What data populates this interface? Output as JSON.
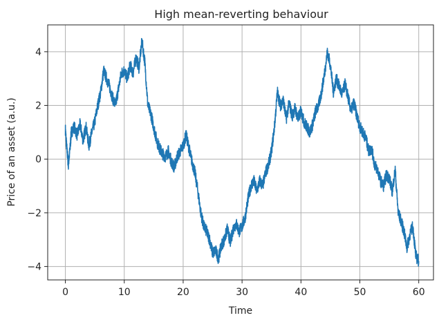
{
  "chart_data": {
    "type": "line",
    "title": "High mean-reverting behaviour",
    "xlabel": "Time",
    "ylabel": "Price of an asset (a.u.)",
    "xlim": [
      -3,
      62.5
    ],
    "ylim": [
      -4.5,
      5.0
    ],
    "xticks": [
      0,
      10,
      20,
      30,
      40,
      50,
      60
    ],
    "xtick_labels": [
      "0",
      "10",
      "20",
      "30",
      "40",
      "50",
      "60"
    ],
    "yticks": [
      -4,
      -2,
      0,
      2,
      4
    ],
    "ytick_labels": [
      "−4",
      "−2",
      "0",
      "2",
      "4"
    ],
    "grid": true,
    "series": [
      {
        "color": "#1f77b4",
        "x": [
          0,
          0.2,
          0.5,
          0.8,
          1,
          1.5,
          2,
          2.5,
          3,
          3.5,
          4,
          4.5,
          5,
          5.5,
          6,
          6.5,
          7,
          7.5,
          8,
          8.5,
          9,
          9.5,
          10,
          10.5,
          11,
          11.5,
          12,
          12.5,
          13,
          13.5,
          14,
          14.5,
          15,
          15.5,
          16,
          16.5,
          17,
          17.5,
          18,
          18.5,
          19,
          19.5,
          20,
          20.5,
          21,
          21.5,
          22,
          22.5,
          23,
          23.5,
          24,
          24.5,
          25,
          25.5,
          26,
          26.5,
          27,
          27.5,
          28,
          28.5,
          29,
          29.5,
          30,
          30.5,
          31,
          31.5,
          32,
          32.5,
          33,
          33.5,
          34,
          34.5,
          35,
          35.5,
          36,
          36.5,
          37,
          37.5,
          38,
          38.5,
          39,
          39.5,
          40,
          40.5,
          41,
          41.5,
          42,
          42.5,
          43,
          43.5,
          44,
          44.5,
          45,
          45.5,
          46,
          46.5,
          47,
          47.5,
          48,
          48.5,
          49,
          49.5,
          50,
          50.5,
          51,
          51.5,
          52,
          52.5,
          53,
          53.5,
          54,
          54.5,
          55,
          55.5,
          56,
          56.5,
          57,
          57.5,
          58,
          58.5,
          59,
          59.5,
          60
        ],
        "y": [
          1.1,
          0.5,
          -0.2,
          0.4,
          1.0,
          1.2,
          0.9,
          1.3,
          0.7,
          1.2,
          0.5,
          1.0,
          1.4,
          2.0,
          2.5,
          3.3,
          3.0,
          2.7,
          2.3,
          2.0,
          2.6,
          3.2,
          3.3,
          3.0,
          3.5,
          3.2,
          3.8,
          3.4,
          4.4,
          3.6,
          2.0,
          1.7,
          1.2,
          0.7,
          0.4,
          0.2,
          0.1,
          0.3,
          -0.1,
          -0.3,
          0.1,
          0.3,
          0.5,
          0.9,
          0.4,
          -0.1,
          -0.5,
          -1.2,
          -2.0,
          -2.5,
          -2.7,
          -3.0,
          -3.5,
          -3.4,
          -3.7,
          -3.2,
          -3.0,
          -2.6,
          -3.1,
          -2.6,
          -2.4,
          -2.7,
          -2.5,
          -2.2,
          -1.5,
          -1.0,
          -0.8,
          -1.2,
          -0.8,
          -1.0,
          -0.5,
          -0.2,
          0.3,
          1.2,
          2.5,
          2.0,
          2.2,
          1.5,
          2.1,
          1.6,
          1.9,
          1.5,
          1.8,
          1.4,
          1.2,
          1.0,
          1.3,
          1.8,
          2.0,
          2.5,
          3.2,
          4.0,
          3.5,
          2.5,
          3.0,
          2.7,
          2.4,
          2.8,
          2.3,
          1.8,
          2.1,
          1.6,
          1.2,
          1.0,
          0.8,
          0.3,
          0.4,
          -0.2,
          -0.4,
          -0.8,
          -1.0,
          -0.6,
          -0.7,
          -1.2,
          -0.4,
          -2.0,
          -2.3,
          -2.7,
          -3.3,
          -2.8,
          -2.5,
          -3.6,
          -3.8
        ]
      }
    ]
  }
}
